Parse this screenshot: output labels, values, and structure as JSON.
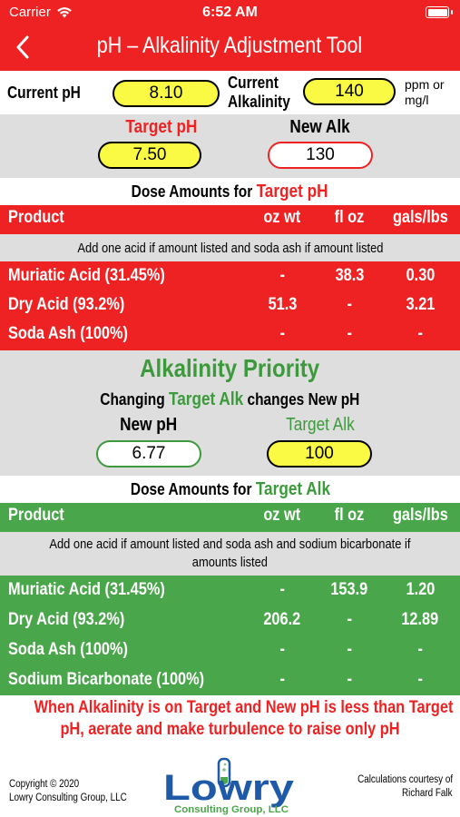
{
  "status": {
    "carrier": "Carrier",
    "time": "6:52 AM"
  },
  "nav": {
    "title": "pH – Alkalinity Adjustment Tool"
  },
  "current": {
    "ph_label": "Current pH",
    "ph_value": "8.10",
    "alk_label_1": "Current",
    "alk_label_2": "Alkalinity",
    "alk_value": "140",
    "unit_1": "ppm or",
    "unit_2": "mg/l"
  },
  "target": {
    "ph_label": "Target pH",
    "ph_value": "7.50",
    "new_alk_label": "New Alk",
    "new_alk_value": "130"
  },
  "ph_dose": {
    "title_prefix": "Dose Amounts for",
    "title_highlight": "Target pH",
    "headers": [
      "Product",
      "oz wt",
      "fl oz",
      "gals/lbs"
    ],
    "note": "Add one acid if amount listed and soda ash if amount listed",
    "rows": [
      {
        "product": "Muriatic Acid (31.45%)",
        "oz_wt": "-",
        "fl_oz": "38.3",
        "gals": "0.30"
      },
      {
        "product": "Dry Acid (93.2%)",
        "oz_wt": "51.3",
        "fl_oz": "-",
        "gals": "3.21"
      },
      {
        "product": "Soda Ash (100%)",
        "oz_wt": "-",
        "fl_oz": "-",
        "gals": "-"
      }
    ]
  },
  "alk_priority": {
    "title": "Alkalinity Priority",
    "sub_prefix": "Changing",
    "sub_highlight": "Target Alk",
    "sub_suffix": "changes New pH",
    "new_ph_label": "New pH",
    "new_ph_value": "6.77",
    "target_alk_label": "Target Alk",
    "target_alk_value": "100"
  },
  "alk_dose": {
    "title_prefix": "Dose Amounts for",
    "title_highlight": "Target Alk",
    "headers": [
      "Product",
      "oz wt",
      "fl oz",
      "gals/lbs"
    ],
    "note_1": "Add one acid if amount listed and soda ash and sodium bicarbonate if",
    "note_2": "amounts listed",
    "rows": [
      {
        "product": "Muriatic Acid (31.45%)",
        "oz_wt": "-",
        "fl_oz": "153.9",
        "gals": "1.20"
      },
      {
        "product": "Dry Acid (93.2%)",
        "oz_wt": "206.2",
        "fl_oz": "-",
        "gals": "12.89"
      },
      {
        "product": "Soda Ash (100%)",
        "oz_wt": "-",
        "fl_oz": "-",
        "gals": "-"
      },
      {
        "product": "Sodium Bicarbonate (100%)",
        "oz_wt": "-",
        "fl_oz": "-",
        "gals": "-"
      }
    ]
  },
  "footer": {
    "warning_1": "When Alkalinity is on Target and New pH is less than Target",
    "warning_2": "pH, aerate and make turbulence to raise only pH",
    "copyright_1": "Copyright © 2020",
    "copyright_2": "Lowry Consulting Group, LLC",
    "credit_1": "Calculations courtesy of",
    "credit_2": "Richard Falk",
    "logo_text": "Lowry",
    "logo_sub": "Consulting Group, LLC"
  },
  "colors": {
    "red": "#ee2222",
    "green": "#4aa64a",
    "yellow": "#fafa44",
    "gray": "#dedede"
  }
}
